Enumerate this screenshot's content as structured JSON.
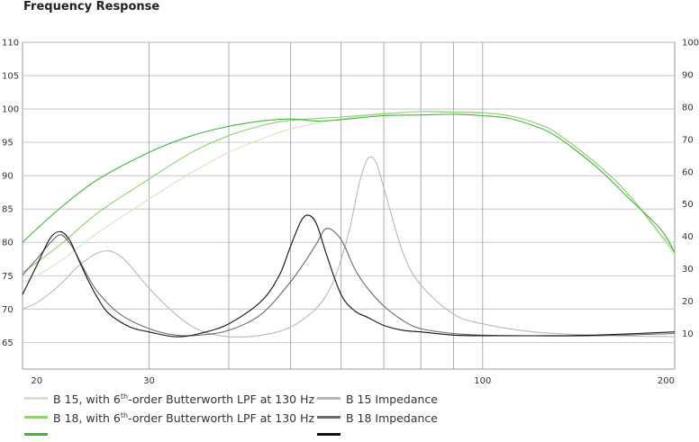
{
  "chart_data": {
    "type": "line",
    "title": "Frequency Response",
    "x_scale": "log",
    "xlim": [
      19,
      200
    ],
    "ylim_left": [
      61,
      110
    ],
    "ylim_right": [
      -1,
      100
    ],
    "x_ticks": [
      "20",
      "30",
      "100",
      "200"
    ],
    "y_ticks_left": [
      "110",
      "105",
      "100",
      "95",
      "90",
      "85",
      "80",
      "75",
      "70",
      "65"
    ],
    "y_ticks_right": [
      "100",
      "90",
      "80",
      "70",
      "60",
      "50",
      "40",
      "30",
      "20",
      "10"
    ],
    "grid": true,
    "legend_placement": "bottom",
    "series": [
      {
        "name": "B 15, with 6th-order Butterworth LPF at 130 Hz",
        "color": "#cfe8c0",
        "axis": "left",
        "x": [
          19,
          20,
          22,
          25,
          30,
          35,
          40,
          45,
          50,
          60,
          70,
          80,
          90,
          100,
          110,
          120,
          130,
          150,
          170,
          200
        ],
        "y": [
          74,
          75,
          77.5,
          81.5,
          86.5,
          90.5,
          93.5,
          95.5,
          97,
          98.5,
          99.2,
          99.6,
          99.6,
          99.5,
          99,
          98,
          96.5,
          92,
          87,
          78
        ]
      },
      {
        "name": "B 18, with 6th-order Butterworth LPF at 130 Hz",
        "color": "#8fd070",
        "axis": "left",
        "x": [
          19,
          20,
          22,
          25,
          30,
          35,
          40,
          45,
          50,
          60,
          70,
          80,
          90,
          100,
          110,
          120,
          130,
          150,
          170,
          200
        ],
        "y": [
          75.5,
          77,
          80,
          84.5,
          89.5,
          93.5,
          96,
          97.5,
          98.3,
          98.8,
          99.3,
          99.6,
          99.5,
          99.4,
          99,
          98,
          96.5,
          92,
          87,
          78.5
        ]
      },
      {
        "name": "",
        "color": "#3db83a",
        "axis": "left",
        "x": [
          19,
          20,
          22,
          25,
          30,
          35,
          40,
          45,
          50,
          55,
          60,
          70,
          80,
          90,
          100,
          110,
          120,
          130,
          150,
          170,
          190,
          200
        ],
        "y": [
          80,
          82,
          85.5,
          89.5,
          93.5,
          96,
          97.4,
          98.2,
          98.5,
          98.2,
          98.4,
          99,
          99.1,
          99.2,
          99,
          98.6,
          97.5,
          96,
          91.5,
          86.5,
          82,
          78.5
        ]
      },
      {
        "name": "B 15 Impedance",
        "color": "#b8b8b8",
        "axis": "right",
        "x": [
          19,
          20,
          21,
          22,
          23,
          24,
          25,
          26,
          27,
          28,
          30,
          33,
          36,
          40,
          45,
          50,
          55,
          58,
          60,
          62,
          64,
          66,
          68,
          70,
          75,
          80,
          90,
          100,
          120,
          150,
          200
        ],
        "y": [
          17.5,
          19.5,
          22.5,
          26,
          30,
          33,
          35,
          35.5,
          34,
          31,
          24,
          16,
          11,
          9,
          9.5,
          12,
          18,
          25,
          33,
          43,
          56,
          64,
          63,
          55,
          35,
          25,
          16,
          13,
          10.5,
          9.5,
          9
        ]
      },
      {
        "name": "B 18 Impedance",
        "color": "#6a6a6a",
        "axis": "right",
        "x": [
          19,
          20,
          21,
          21.8,
          22.5,
          23,
          24,
          25,
          27,
          30,
          33,
          36,
          40,
          45,
          50,
          53,
          55,
          57,
          60,
          63,
          66,
          70,
          75,
          80,
          90,
          100,
          120,
          150,
          200
        ],
        "y": [
          28,
          33,
          38,
          40.5,
          38,
          35,
          28,
          22.5,
          16,
          11.5,
          9.5,
          9.5,
          11,
          16,
          26,
          33,
          38,
          42.5,
          39,
          30,
          24,
          18.5,
          14,
          11.5,
          10,
          9.5,
          9.3,
          9.3,
          10
        ]
      },
      {
        "name": "",
        "color": "#111111",
        "axis": "right",
        "x": [
          19,
          20,
          21,
          21.8,
          22.5,
          23,
          24,
          25,
          26,
          28,
          30,
          33,
          36,
          40,
          45,
          48,
          50,
          52,
          53.5,
          55,
          57,
          60,
          63,
          66,
          70,
          75,
          80,
          90,
          100,
          120,
          150,
          200
        ],
        "y": [
          22,
          31,
          39.5,
          41.5,
          39,
          35,
          27,
          20.5,
          16,
          12,
          10.5,
          9,
          10,
          13,
          20,
          28,
          37,
          45,
          46.5,
          43.5,
          34,
          22,
          17,
          15,
          12.5,
          11,
          10.5,
          9.5,
          9.3,
          9.3,
          9.5,
          10.5
        ]
      }
    ]
  },
  "legend": {
    "left": [
      {
        "label": "B 15, with 6",
        "sup": "th",
        "tail": "-order Butterworth LPF at 130 Hz",
        "color": "#cfe8c0"
      },
      {
        "label": "B 18, with 6",
        "sup": "th",
        "tail": "-order Butterworth LPF at 130 Hz",
        "color": "#8fd070"
      },
      {
        "label": "",
        "sup": "",
        "tail": "",
        "color": "#3db83a"
      }
    ],
    "right": [
      {
        "label": "B 15 Impedance",
        "color": "#b8b8b8"
      },
      {
        "label": "B 18 Impedance",
        "color": "#6a6a6a"
      },
      {
        "label": "",
        "color": "#111111"
      }
    ]
  }
}
